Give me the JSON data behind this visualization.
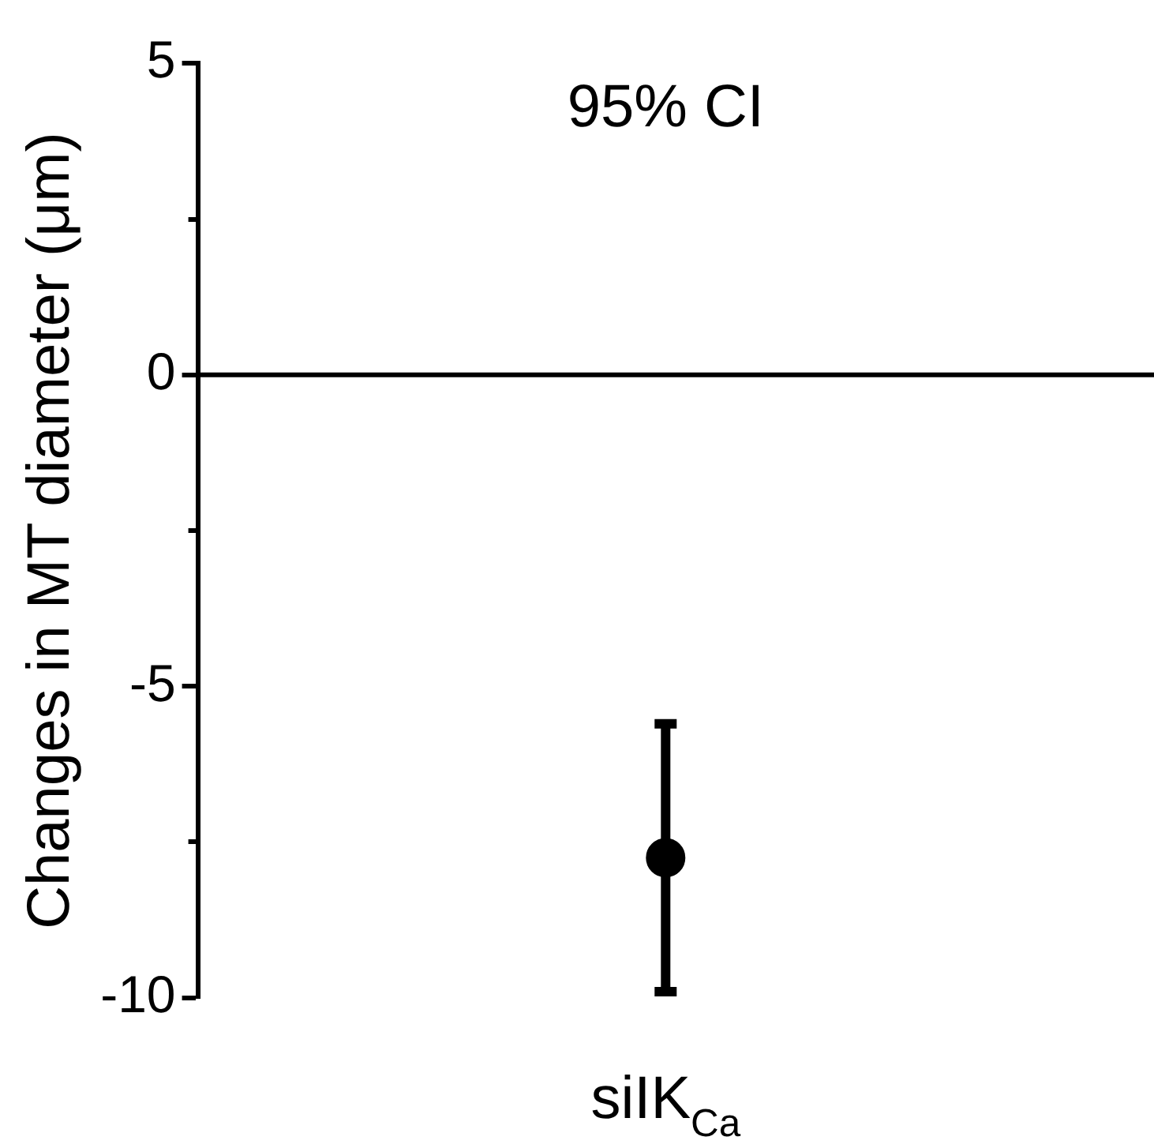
{
  "chart_data": {
    "type": "scatter",
    "title": "95% CI",
    "ylabel": "Changes in MT diameter (μm)",
    "categories": [
      "siIK$_{Ca}$"
    ],
    "values": [
      -7.75
    ],
    "errors": [
      [
        -9.9,
        -5.6
      ]
    ],
    "color": "#000000",
    "marker": "circle",
    "ylim": [
      -10,
      5
    ],
    "yticks": [
      -10,
      -5,
      0,
      5
    ],
    "ref_lines": [
      {
        "axis": "y",
        "value": 0,
        "color": "#000000"
      }
    ],
    "grid": false,
    "legend": false
  }
}
